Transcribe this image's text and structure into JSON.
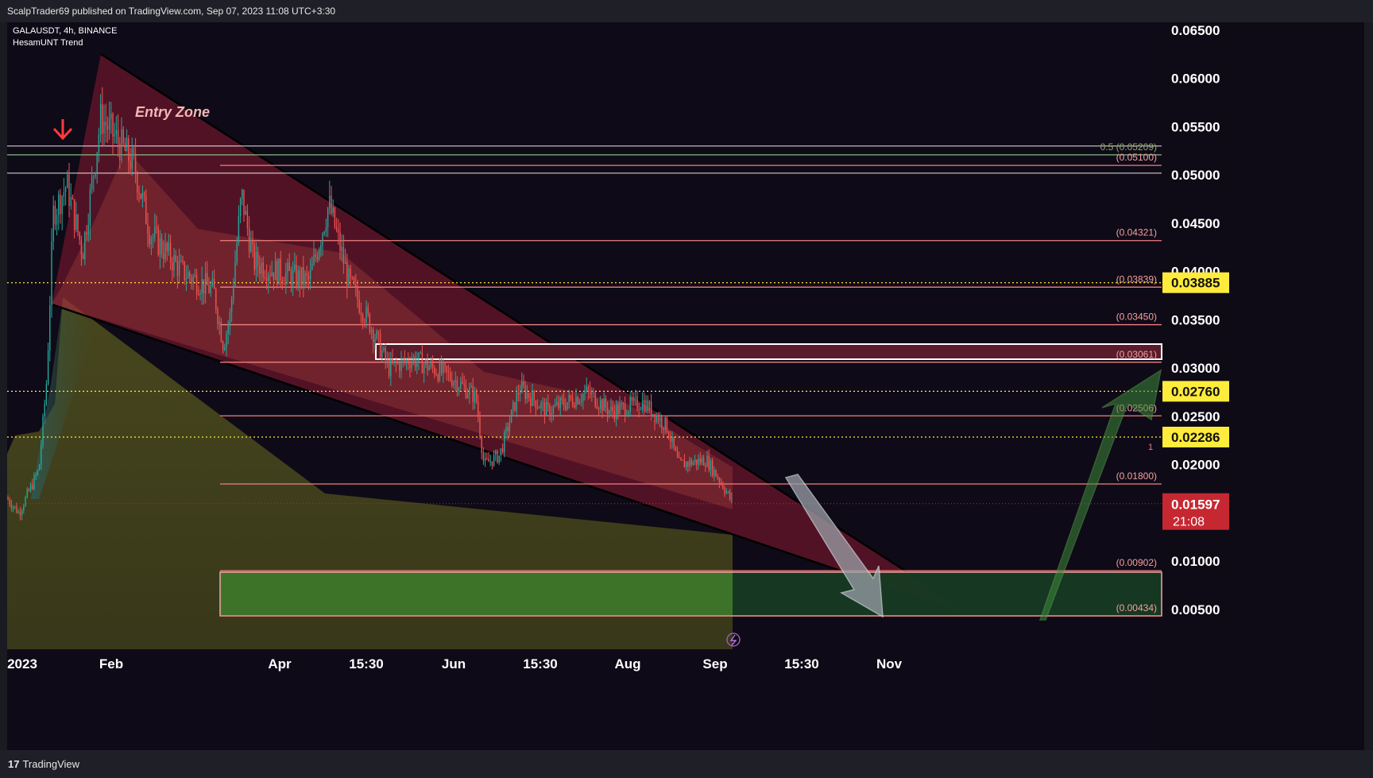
{
  "header": {
    "published_by": "ScalpTrader69 published on TradingView.com, Sep 07, 2023 11:08 UTC+3:30"
  },
  "legend": {
    "symbol": "GALAUSDT, 4h, BINANCE",
    "indicator": "HesamUNT Trend"
  },
  "footer": {
    "brand": "TradingView"
  },
  "chart_data": {
    "type": "candlestick",
    "x_axis": {
      "ticks": [
        "2023",
        "Feb",
        "Apr",
        "15:30",
        "Jun",
        "15:30",
        "Aug",
        "Sep",
        "15:30",
        "Nov"
      ]
    },
    "y_axis": {
      "range": [
        0.0,
        0.0673
      ],
      "ticks": [
        "0.06500",
        "0.06000",
        "0.05500",
        "0.05000",
        "0.04500",
        "0.04000",
        "0.03500",
        "0.03000",
        "0.02500",
        "0.02000",
        "0.01000",
        "0.00500"
      ]
    },
    "levels": [
      {
        "label": "0.5 (0.05209)",
        "value": 0.05209,
        "kind": "fib"
      },
      {
        "label": "(0.05100)",
        "value": 0.051,
        "kind": "level"
      },
      {
        "label": "(0.04321)",
        "value": 0.04321,
        "kind": "level"
      },
      {
        "label": "(0.03839)",
        "value": 0.03839,
        "kind": "level"
      },
      {
        "label": "(0.03450)",
        "value": 0.0345,
        "kind": "level"
      },
      {
        "label": "(0.03061)",
        "value": 0.03061,
        "kind": "level"
      },
      {
        "label": "(0.02506)",
        "value": 0.02506,
        "kind": "level"
      },
      {
        "label": "(0.01800)",
        "value": 0.018,
        "kind": "level"
      },
      {
        "label": "(0.00902)",
        "value": 0.00902,
        "kind": "level"
      },
      {
        "label": "(0.00434)",
        "value": 0.00434,
        "kind": "level"
      }
    ],
    "price_tags": [
      {
        "label": "0.03885",
        "value": 0.03885
      },
      {
        "label": "0.02760",
        "value": 0.0276
      },
      {
        "label": "0.02286",
        "value": 0.02286
      }
    ],
    "last_price": {
      "label": "0.01597",
      "countdown": "21:08",
      "value": 0.01597
    },
    "annotations": {
      "entry_zone": "Entry Zone",
      "marker": "1"
    },
    "colors": {
      "background": "#0f0a17",
      "up": "#26a69a",
      "down": "#ef5350",
      "level": "#f08080",
      "price_tag": "#ffeb3b",
      "last_price": "#c62832",
      "channel": "#8b1a33",
      "entry_zone": "#3e7a2a"
    }
  }
}
